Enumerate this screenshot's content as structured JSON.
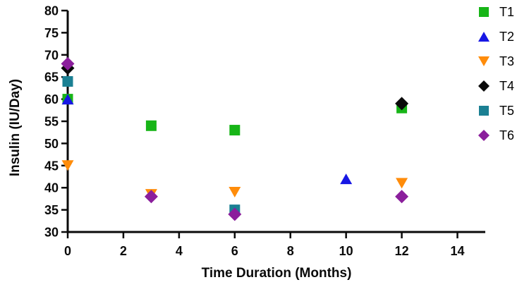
{
  "chart_data": {
    "type": "scatter",
    "title": "",
    "xlabel": "Time Duration (Months)",
    "ylabel": "Insulin (IU/Day)",
    "xlim": [
      0,
      15
    ],
    "ylim": [
      30,
      80
    ],
    "x_ticks": [
      0,
      2,
      4,
      6,
      8,
      10,
      12,
      14
    ],
    "y_ticks": [
      30,
      35,
      40,
      45,
      50,
      55,
      60,
      65,
      70,
      75,
      80
    ],
    "grid": false,
    "legend_position": "right",
    "axis_color": "#0a0a0a",
    "background_color": "#ffffff",
    "series": [
      {
        "name": "T1",
        "marker": "square",
        "color": "#17B517",
        "points": [
          [
            0,
            60
          ],
          [
            3,
            54
          ],
          [
            6,
            53
          ],
          [
            12,
            58
          ]
        ]
      },
      {
        "name": "T2",
        "marker": "triangle-up",
        "color": "#1717E4",
        "points": [
          [
            0,
            60
          ],
          [
            10,
            42
          ]
        ]
      },
      {
        "name": "T3",
        "marker": "triangle-down",
        "color": "#FF8C0A",
        "points": [
          [
            0,
            45
          ],
          [
            3,
            38.5
          ],
          [
            6,
            39
          ],
          [
            12,
            41
          ]
        ]
      },
      {
        "name": "T4",
        "marker": "diamond",
        "color": "#0A0A0A",
        "points": [
          [
            0,
            67
          ],
          [
            12,
            59
          ]
        ]
      },
      {
        "name": "T5",
        "marker": "square",
        "color": "#1B8093",
        "points": [
          [
            0,
            64
          ],
          [
            6,
            35
          ]
        ]
      },
      {
        "name": "T6",
        "marker": "diamond",
        "color": "#8B1F9C",
        "points": [
          [
            0,
            68
          ],
          [
            3,
            38
          ],
          [
            6,
            34
          ],
          [
            12,
            38
          ]
        ]
      }
    ]
  }
}
